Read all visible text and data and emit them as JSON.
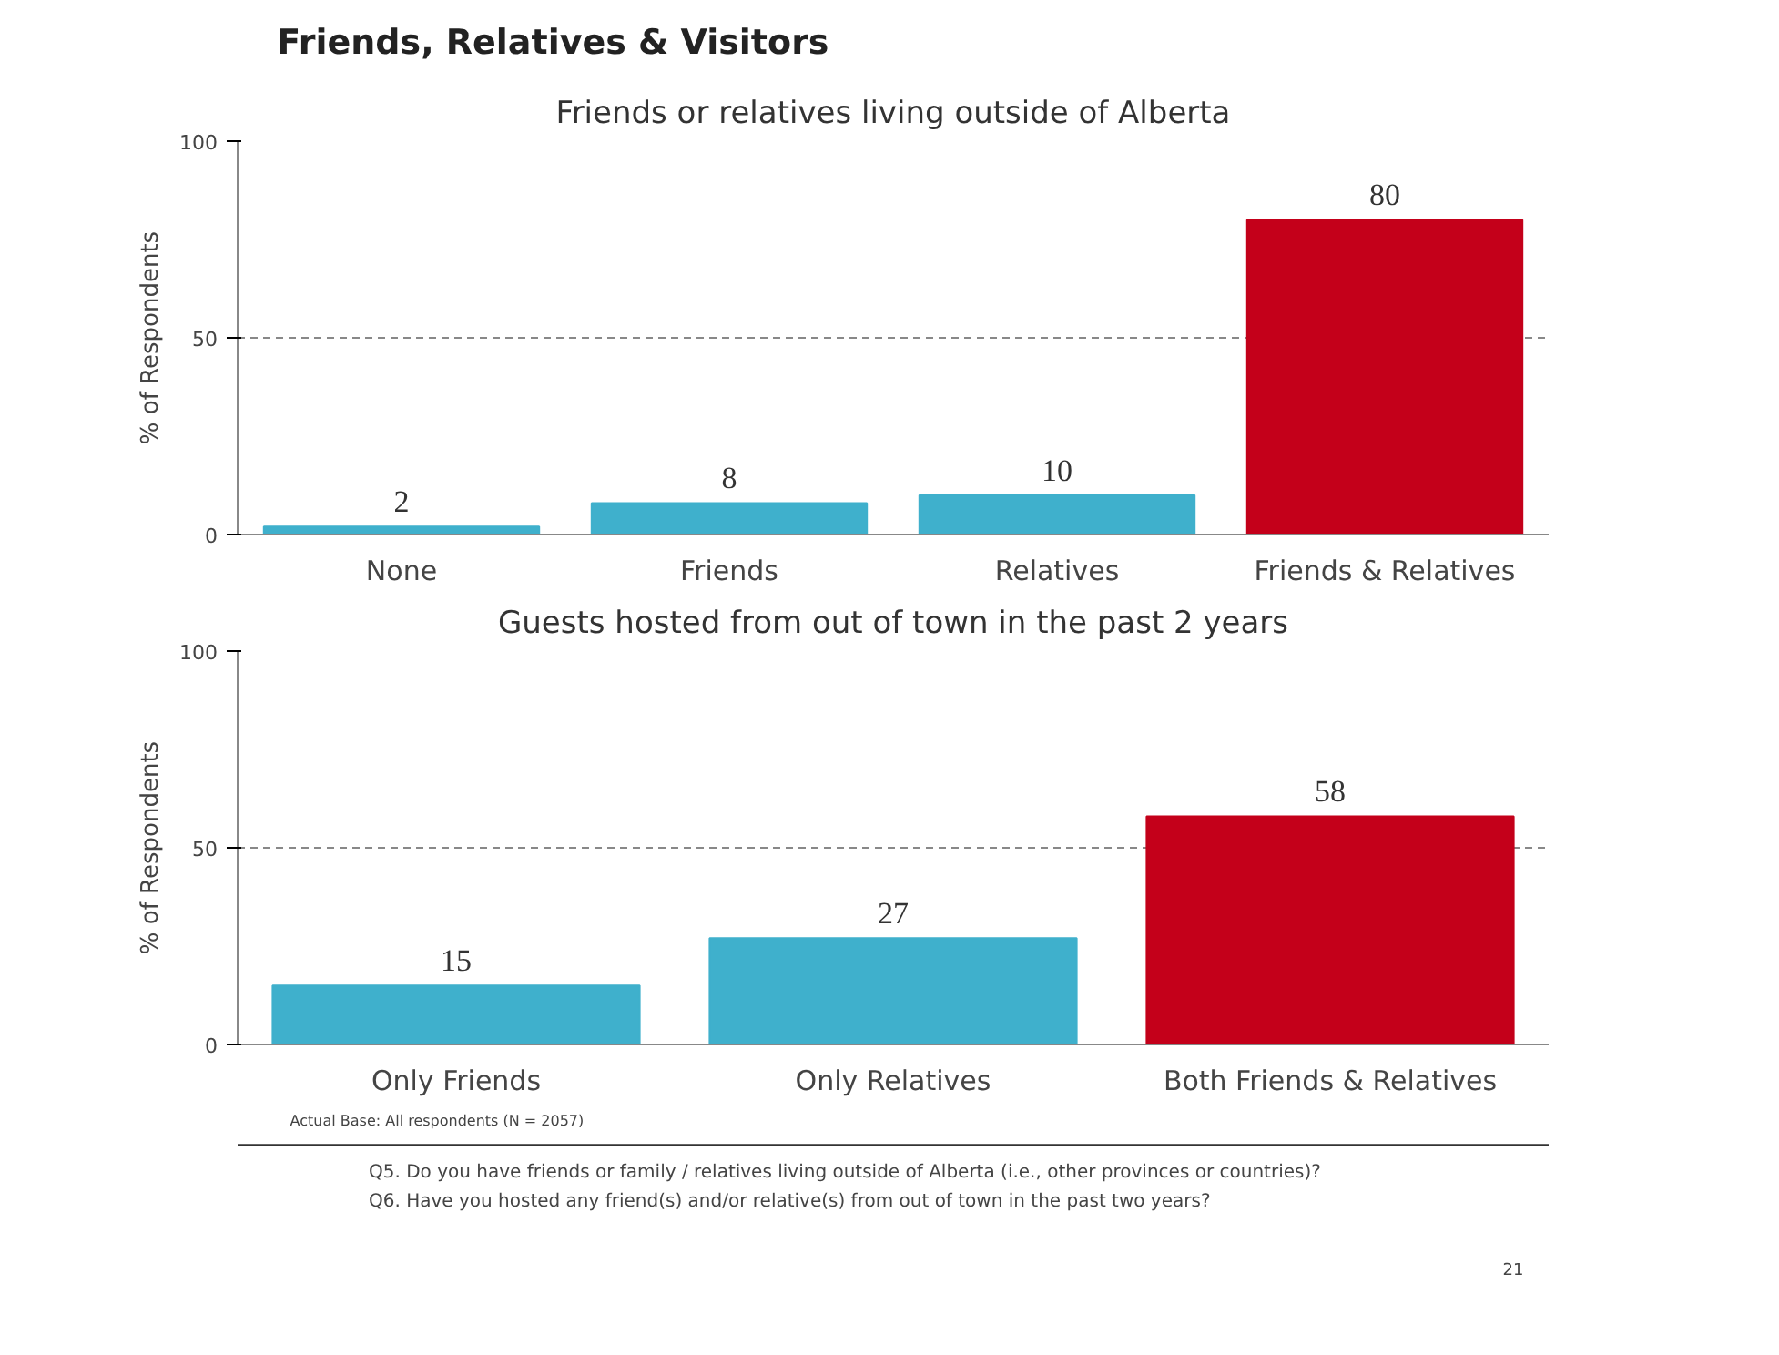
{
  "chart_data": [
    {
      "type": "other",
      "title": "Friends, Relatives & Visitors"
    },
    {
      "type": "bar",
      "title": "Friends or relatives living outside of Alberta",
      "ylabel": "% of Respondents",
      "categories": [
        "None",
        "Friends",
        "Relatives",
        "Friends & Relatives"
      ],
      "values": [
        2,
        8,
        10,
        80
      ],
      "colors": [
        "#3fb0cc",
        "#3fb0cc",
        "#3fb0cc",
        "#c4001a"
      ],
      "ylim": [
        0,
        100
      ],
      "yticks": [
        0,
        50,
        100
      ],
      "grid": "y",
      "data_labels": true
    },
    {
      "type": "bar",
      "title": "Guests hosted from out of town in the past 2 years",
      "ylabel": "% of Respondents",
      "categories": [
        "Only Friends",
        "Only Relatives",
        "Both Friends & Relatives"
      ],
      "values": [
        15,
        27,
        58
      ],
      "colors": [
        "#3fb0cc",
        "#3fb0cc",
        "#c4001a"
      ],
      "ylim": [
        0,
        100
      ],
      "yticks": [
        0,
        50,
        100
      ],
      "grid": "y",
      "data_labels": true,
      "annotations": [
        "Actual Base: All respondents (N = 2057)",
        "Q5.   Do you have friends or family / relatives living outside of Alberta (i.e., other provinces or countries)?",
        "Q6.   Have you hosted any friend(s) and/or relative(s) from out of town in the past two years?",
        "21"
      ]
    }
  ]
}
